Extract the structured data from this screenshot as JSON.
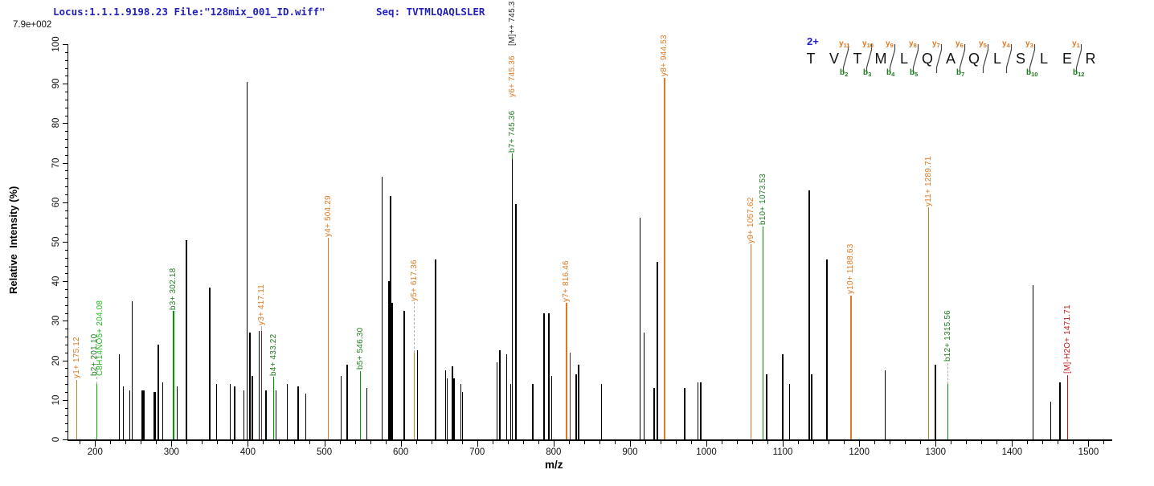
{
  "header": {
    "locus_file": "Locus:1.1.1.9198.23 File:\"128mix_001_ID.wiff\"",
    "seq_line": "Seq: TVTMLQAQLSLER",
    "base_peak_intensity": "7.9e+002",
    "text_color": "#2222bb"
  },
  "axes": {
    "x": {
      "label": "m/z",
      "min": 165,
      "max": 1530,
      "major_ticks": [
        200,
        300,
        400,
        500,
        600,
        700,
        800,
        900,
        1000,
        1100,
        1200,
        1300,
        1400,
        1500
      ],
      "minor_start": 180,
      "minor_end": 1520,
      "minor_step": 20
    },
    "y": {
      "label": "Relative  Intensity (%)",
      "min": 0,
      "max": 100,
      "major_ticks": [
        0,
        10,
        20,
        30,
        40,
        50,
        60,
        70,
        80,
        90,
        100
      ],
      "minor_step": 2
    }
  },
  "colors": {
    "y_ion": "#e07820",
    "b_ion_text": "#1e7d1e",
    "b_ion_line": "#009900",
    "bright_green": "#22bb22",
    "dark_red": "#8b1a1a",
    "red": "#c11717",
    "black": "#000000",
    "blue": "#2020c8"
  },
  "chart_data": {
    "type": "bar",
    "title": "MS/MS spectrum of peptide TVTMLQAQLSLER (2+)",
    "xlabel": "m/z",
    "ylabel": "Relative  Intensity (%)",
    "xlim": [
      165,
      1530
    ],
    "ylim": [
      0,
      100
    ],
    "peaks": [
      {
        "mz": 231,
        "pct": 21.5
      },
      {
        "mz": 236,
        "pct": 13.5
      },
      {
        "mz": 245,
        "pct": 12.5
      },
      {
        "mz": 248,
        "pct": 35
      },
      {
        "mz": 261,
        "pct": 12.5
      },
      {
        "mz": 263,
        "pct": 12.5
      },
      {
        "mz": 276,
        "pct": 12
      },
      {
        "mz": 278,
        "pct": 12
      },
      {
        "mz": 282,
        "pct": 24
      },
      {
        "mz": 288,
        "pct": 14.5
      },
      {
        "mz": 307,
        "pct": 13.5
      },
      {
        "mz": 319,
        "pct": 50.5
      },
      {
        "mz": 349.5,
        "pct": 38.5
      },
      {
        "mz": 358,
        "pct": 14
      },
      {
        "mz": 376,
        "pct": 14
      },
      {
        "mz": 382,
        "pct": 13.5
      },
      {
        "mz": 394,
        "pct": 12.5
      },
      {
        "mz": 398.5,
        "pct": 90.5
      },
      {
        "mz": 402,
        "pct": 27
      },
      {
        "mz": 405,
        "pct": 16
      },
      {
        "mz": 414,
        "pct": 27.5
      },
      {
        "mz": 423,
        "pct": 12.5
      },
      {
        "mz": 436,
        "pct": 12.5
      },
      {
        "mz": 451,
        "pct": 14
      },
      {
        "mz": 465,
        "pct": 13.5
      },
      {
        "mz": 475,
        "pct": 11.5
      },
      {
        "mz": 521,
        "pct": 16
      },
      {
        "mz": 529,
        "pct": 19
      },
      {
        "mz": 555,
        "pct": 13
      },
      {
        "mz": 575,
        "pct": 66.5
      },
      {
        "mz": 584,
        "pct": 40
      },
      {
        "mz": 586,
        "pct": 61.5
      },
      {
        "mz": 588,
        "pct": 34.5
      },
      {
        "mz": 604,
        "pct": 32.5
      },
      {
        "mz": 621,
        "pct": 22.5
      },
      {
        "mz": 645,
        "pct": 45.5
      },
      {
        "mz": 658,
        "pct": 17.5
      },
      {
        "mz": 660,
        "pct": 15.5
      },
      {
        "mz": 667,
        "pct": 18.5
      },
      {
        "mz": 669,
        "pct": 15.5
      },
      {
        "mz": 678,
        "pct": 14
      },
      {
        "mz": 680,
        "pct": 12
      },
      {
        "mz": 725,
        "pct": 19.5
      },
      {
        "mz": 729,
        "pct": 22.5
      },
      {
        "mz": 738,
        "pct": 21.5
      },
      {
        "mz": 743,
        "pct": 14
      },
      {
        "mz": 745.36,
        "pct": 71
      },
      {
        "mz": 750,
        "pct": 59.5
      },
      {
        "mz": 772,
        "pct": 14
      },
      {
        "mz": 787,
        "pct": 32
      },
      {
        "mz": 793,
        "pct": 32
      },
      {
        "mz": 797,
        "pct": 16
      },
      {
        "mz": 821,
        "pct": 22,
        "color": "#8b1a1a"
      },
      {
        "mz": 829,
        "pct": 16.5
      },
      {
        "mz": 832,
        "pct": 19
      },
      {
        "mz": 862,
        "pct": 14
      },
      {
        "mz": 912.5,
        "pct": 56
      },
      {
        "mz": 917.5,
        "pct": 27
      },
      {
        "mz": 931,
        "pct": 13
      },
      {
        "mz": 935,
        "pct": 45
      },
      {
        "mz": 971,
        "pct": 13
      },
      {
        "mz": 988,
        "pct": 14.5
      },
      {
        "mz": 992,
        "pct": 14.5
      },
      {
        "mz": 1078,
        "pct": 16.5
      },
      {
        "mz": 1099,
        "pct": 21.5
      },
      {
        "mz": 1108,
        "pct": 14
      },
      {
        "mz": 1134,
        "pct": 63
      },
      {
        "mz": 1137,
        "pct": 16.5
      },
      {
        "mz": 1157,
        "pct": 45.5
      },
      {
        "mz": 1233,
        "pct": 17.5
      },
      {
        "mz": 1299,
        "pct": 19
      },
      {
        "mz": 1427,
        "pct": 39
      },
      {
        "mz": 1450,
        "pct": 9.5
      },
      {
        "mz": 1462,
        "pct": 14.5
      }
    ],
    "labeled_peaks": [
      {
        "text": "y1+ 175.12",
        "mz": 175.12,
        "line_from": 0,
        "line_to": 15,
        "line_color": "#e07820",
        "label_bottom": 15.4,
        "text_color": "#e07820"
      },
      {
        "text": "b2+ 201.10",
        "mz": 198.6,
        "line_mz": 201.5,
        "line_from": 0,
        "line_to": 14,
        "line_color": "#00b400",
        "dash_from": 14,
        "dash_to": 15.8,
        "label_bottom": 16,
        "text_color": "#1e7d1e"
      },
      {
        "text": "C8H14NO5+ 204.08",
        "mz": 205.6,
        "label_bottom": 16,
        "text_color": "#22bb22"
      },
      {
        "text": "b3+ 302.18",
        "mz": 302.18,
        "line_from": 0,
        "line_to": 32.5,
        "line_color": "#009900",
        "label_bottom": 32.8,
        "text_color": "#1e7d1e"
      },
      {
        "text": "y3+ 417.11",
        "mz": 417.11,
        "line_from": 0,
        "line_to": 27.5,
        "line_color": "#8b1a1a",
        "dash_from": 27.5,
        "dash_to": 28.6,
        "label_bottom": 28.8,
        "text_color": "#e07820"
      },
      {
        "text": "b4+ 433.22",
        "mz": 433.22,
        "line_from": 0,
        "line_to": 15.8,
        "line_color": "#009900",
        "label_bottom": 16.1,
        "text_color": "#1e7d1e"
      },
      {
        "text": "y4+ 504.29",
        "mz": 504.29,
        "line_from": 0,
        "line_to": 51,
        "line_color": "#e07820",
        "label_bottom": 51.3,
        "text_color": "#e07820"
      },
      {
        "text": "b5+ 546.30",
        "mz": 546.3,
        "line_from": 0,
        "line_to": 17.3,
        "line_color": "#009900",
        "label_bottom": 17.6,
        "text_color": "#1e7d1e"
      },
      {
        "text": "y5+ 617.36",
        "mz": 617.36,
        "line_from": 0,
        "line_to": 22,
        "line_color": "#e07820",
        "dash_from": 22,
        "dash_to": 34.8,
        "label_bottom": 35,
        "text_color": "#e07820"
      },
      {
        "text": "b7+ 745.36",
        "mz": 745.36,
        "line_from": 71,
        "line_to": 72.3,
        "line_color": "#009900",
        "label_bottom": 72.5,
        "text_color": "#1e7d1e"
      },
      {
        "text": "y6+ 745.36",
        "mz": 745.36,
        "label_bottom": 86.5,
        "text_color": "#e07820"
      },
      {
        "text": "[M]++ 745.3",
        "mz": 745.36,
        "label_bottom": 99.5,
        "text_color": "#222222"
      },
      {
        "text": "y7+ 816.46",
        "mz": 816.46,
        "line_from": 0,
        "line_to": 34.5,
        "line_color": "#e07820",
        "label_bottom": 34.8,
        "text_color": "#e07820"
      },
      {
        "text": "y8+ 944.53",
        "mz": 944.53,
        "line_from": 0,
        "line_to": 91.5,
        "line_color": "#e07820",
        "label_bottom": 91.8,
        "text_color": "#e07820"
      },
      {
        "text": "y9+ 1057.62",
        "mz": 1057.62,
        "line_from": 0,
        "line_to": 49.3,
        "line_color": "#e07820",
        "label_bottom": 49.6,
        "text_color": "#e07820"
      },
      {
        "text": "b10+ 1073.53",
        "mz": 1073.53,
        "line_from": 0,
        "line_to": 53.9,
        "line_color": "#009900",
        "label_bottom": 54.2,
        "text_color": "#1e7d1e"
      },
      {
        "text": "y10+ 1188.63",
        "mz": 1188.63,
        "line_from": 0,
        "line_to": 36.4,
        "line_color": "#e07820",
        "label_bottom": 36.7,
        "text_color": "#e07820"
      },
      {
        "text": "y11+ 1289.71",
        "mz": 1289.71,
        "line_from": 0,
        "line_to": 58.7,
        "line_color": "#e07820",
        "label_bottom": 59,
        "text_color": "#e07820"
      },
      {
        "text": "b12+ 1315.56",
        "mz": 1315.56,
        "line_from": 0,
        "line_to": 14,
        "line_color": "#009900",
        "dash_from": 14,
        "dash_to": 19.4,
        "label_bottom": 19.7,
        "text_color": "#1e7d1e"
      },
      {
        "text": "[M]-H2O+ 1471.71",
        "mz": 1471.71,
        "line_from": 0,
        "line_to": 16.3,
        "line_color": "#c11717",
        "label_bottom": 16.6,
        "text_color": "#c11717"
      }
    ]
  },
  "sequence_panel": {
    "charge": "2+",
    "residues": [
      "T",
      "V",
      "T",
      "M",
      "L",
      "Q",
      "A",
      "Q",
      "L",
      "S",
      "L",
      "E",
      "R"
    ],
    "boundaries": [
      {
        "gap": 2,
        "y": "y11",
        "b": "b2"
      },
      {
        "gap": 3,
        "y": "y10",
        "b": "b3"
      },
      {
        "gap": 4,
        "y": "y9",
        "b": "b4"
      },
      {
        "gap": 5,
        "y": "y8",
        "b": "b5"
      },
      {
        "gap": 6,
        "y": "y7",
        "b": ""
      },
      {
        "gap": 7,
        "y": "y6",
        "b": "b7"
      },
      {
        "gap": 8,
        "y": "y5",
        "b": ""
      },
      {
        "gap": 9,
        "y": "y4",
        "b": ""
      },
      {
        "gap": 10,
        "y": "y3",
        "b": "b10"
      },
      {
        "gap": 12,
        "y": "y1",
        "b": "b12"
      }
    ]
  }
}
